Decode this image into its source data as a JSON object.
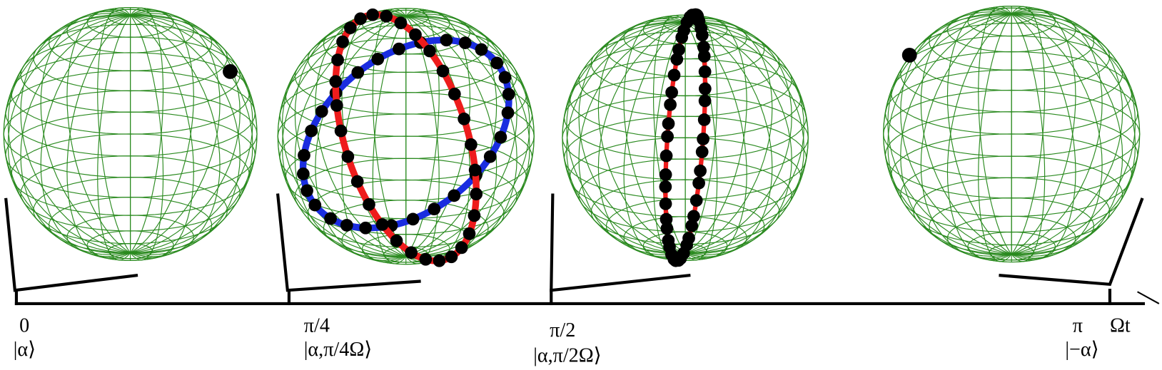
{
  "labels": [
    {
      "time": "0",
      "state": "|α⟩"
    },
    {
      "time": "π/4",
      "state": "|α,π/4Ω⟩"
    },
    {
      "time": "π/2",
      "state": "|α,π/2Ω⟩"
    },
    {
      "time": "π",
      "state": "|−α⟩"
    }
  ],
  "axis_label": "Ωt"
}
